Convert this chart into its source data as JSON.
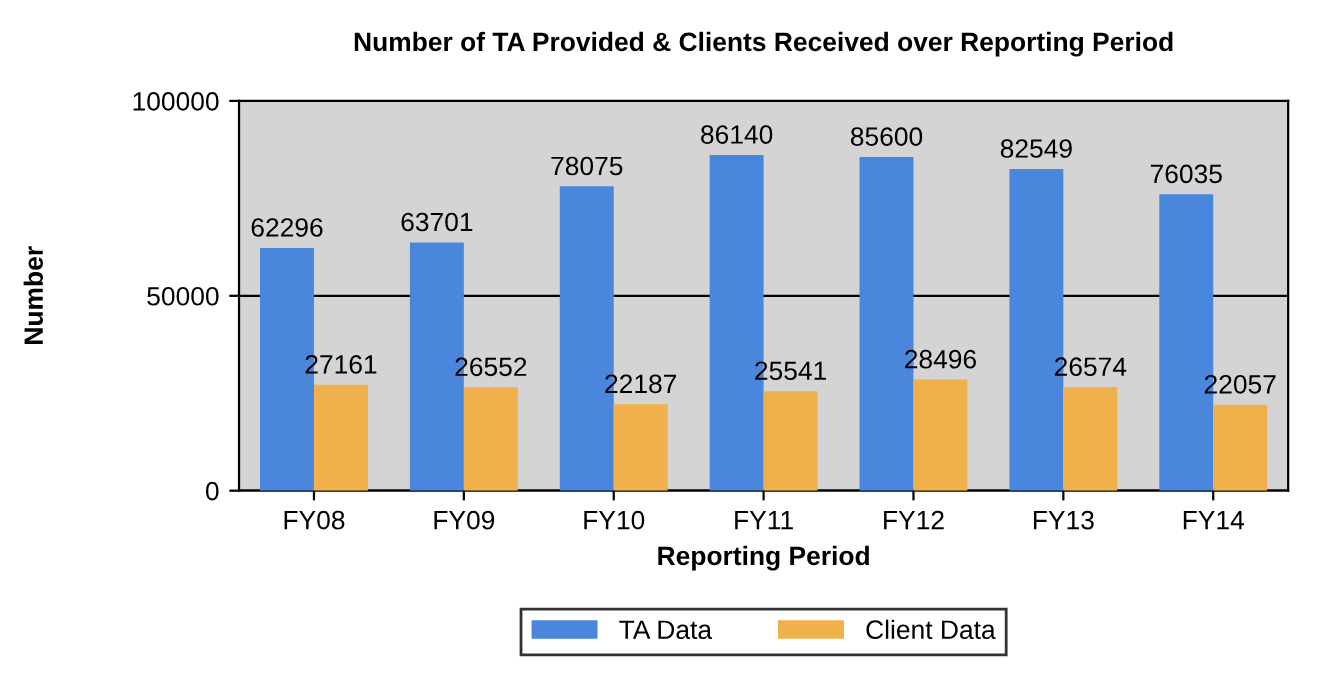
{
  "chart_data": {
    "type": "bar",
    "title": "Number of TA Provided & Clients Received over Reporting Period",
    "xlabel": "Reporting Period",
    "ylabel": "Number",
    "categories": [
      "FY08",
      "FY09",
      "FY10",
      "FY11",
      "FY12",
      "FY13",
      "FY14"
    ],
    "series": [
      {
        "name": "TA Data",
        "color": "#4a86dc",
        "values": [
          62296,
          63701,
          78075,
          86140,
          85600,
          82549,
          76035
        ]
      },
      {
        "name": "Client Data",
        "color": "#f0b04c",
        "values": [
          27161,
          26552,
          22187,
          25541,
          28496,
          26574,
          22057
        ]
      }
    ],
    "ylim": [
      0,
      100000
    ],
    "yticks": [
      0,
      50000,
      100000
    ],
    "grid": "y",
    "legend": "bottom",
    "data_labels": true
  }
}
